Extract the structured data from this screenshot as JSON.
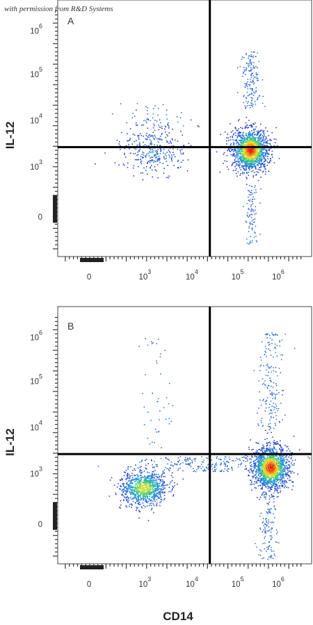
{
  "credit": "with permission from R&D Systems",
  "x_axis_title": "CD14",
  "chart_data": [
    {
      "type": "scatter",
      "panel": "A",
      "xlabel": "CD14",
      "ylabel": "IL-12",
      "x_scale": "biexponential",
      "y_scale": "biexponential",
      "x_ticks": [
        "0",
        "10^3",
        "10^4",
        "10^5",
        "10^6"
      ],
      "y_ticks": [
        "0",
        "10^3",
        "10^4",
        "10^5",
        "10^6"
      ],
      "quadrant_gate": {
        "x": 20000,
        "y": 2500
      },
      "populations": [
        {
          "name": "",
          "center": {
            "x": 1200,
            "y": 2200
          },
          "density": "sparse"
        },
        {
          "name": "",
          "center": {
            "x": 160000,
            "y": 2200
          },
          "density": "dense"
        }
      ]
    },
    {
      "type": "scatter",
      "panel": "B",
      "xlabel": "CD14",
      "ylabel": "IL-12",
      "x_scale": "biexponential",
      "y_scale": "biexponential",
      "x_ticks": [
        "0",
        "10^3",
        "10^4",
        "10^5",
        "10^6"
      ],
      "y_ticks": [
        "0",
        "10^3",
        "10^4",
        "10^5",
        "10^6"
      ],
      "quadrant_gate": {
        "x": 20000,
        "y": 2500
      },
      "populations": [
        {
          "name": "",
          "center": {
            "x": 900,
            "y": 700
          },
          "density": "medium"
        },
        {
          "name": "",
          "center": {
            "x": 500000,
            "y": 1300
          },
          "density": "dense"
        }
      ]
    }
  ]
}
